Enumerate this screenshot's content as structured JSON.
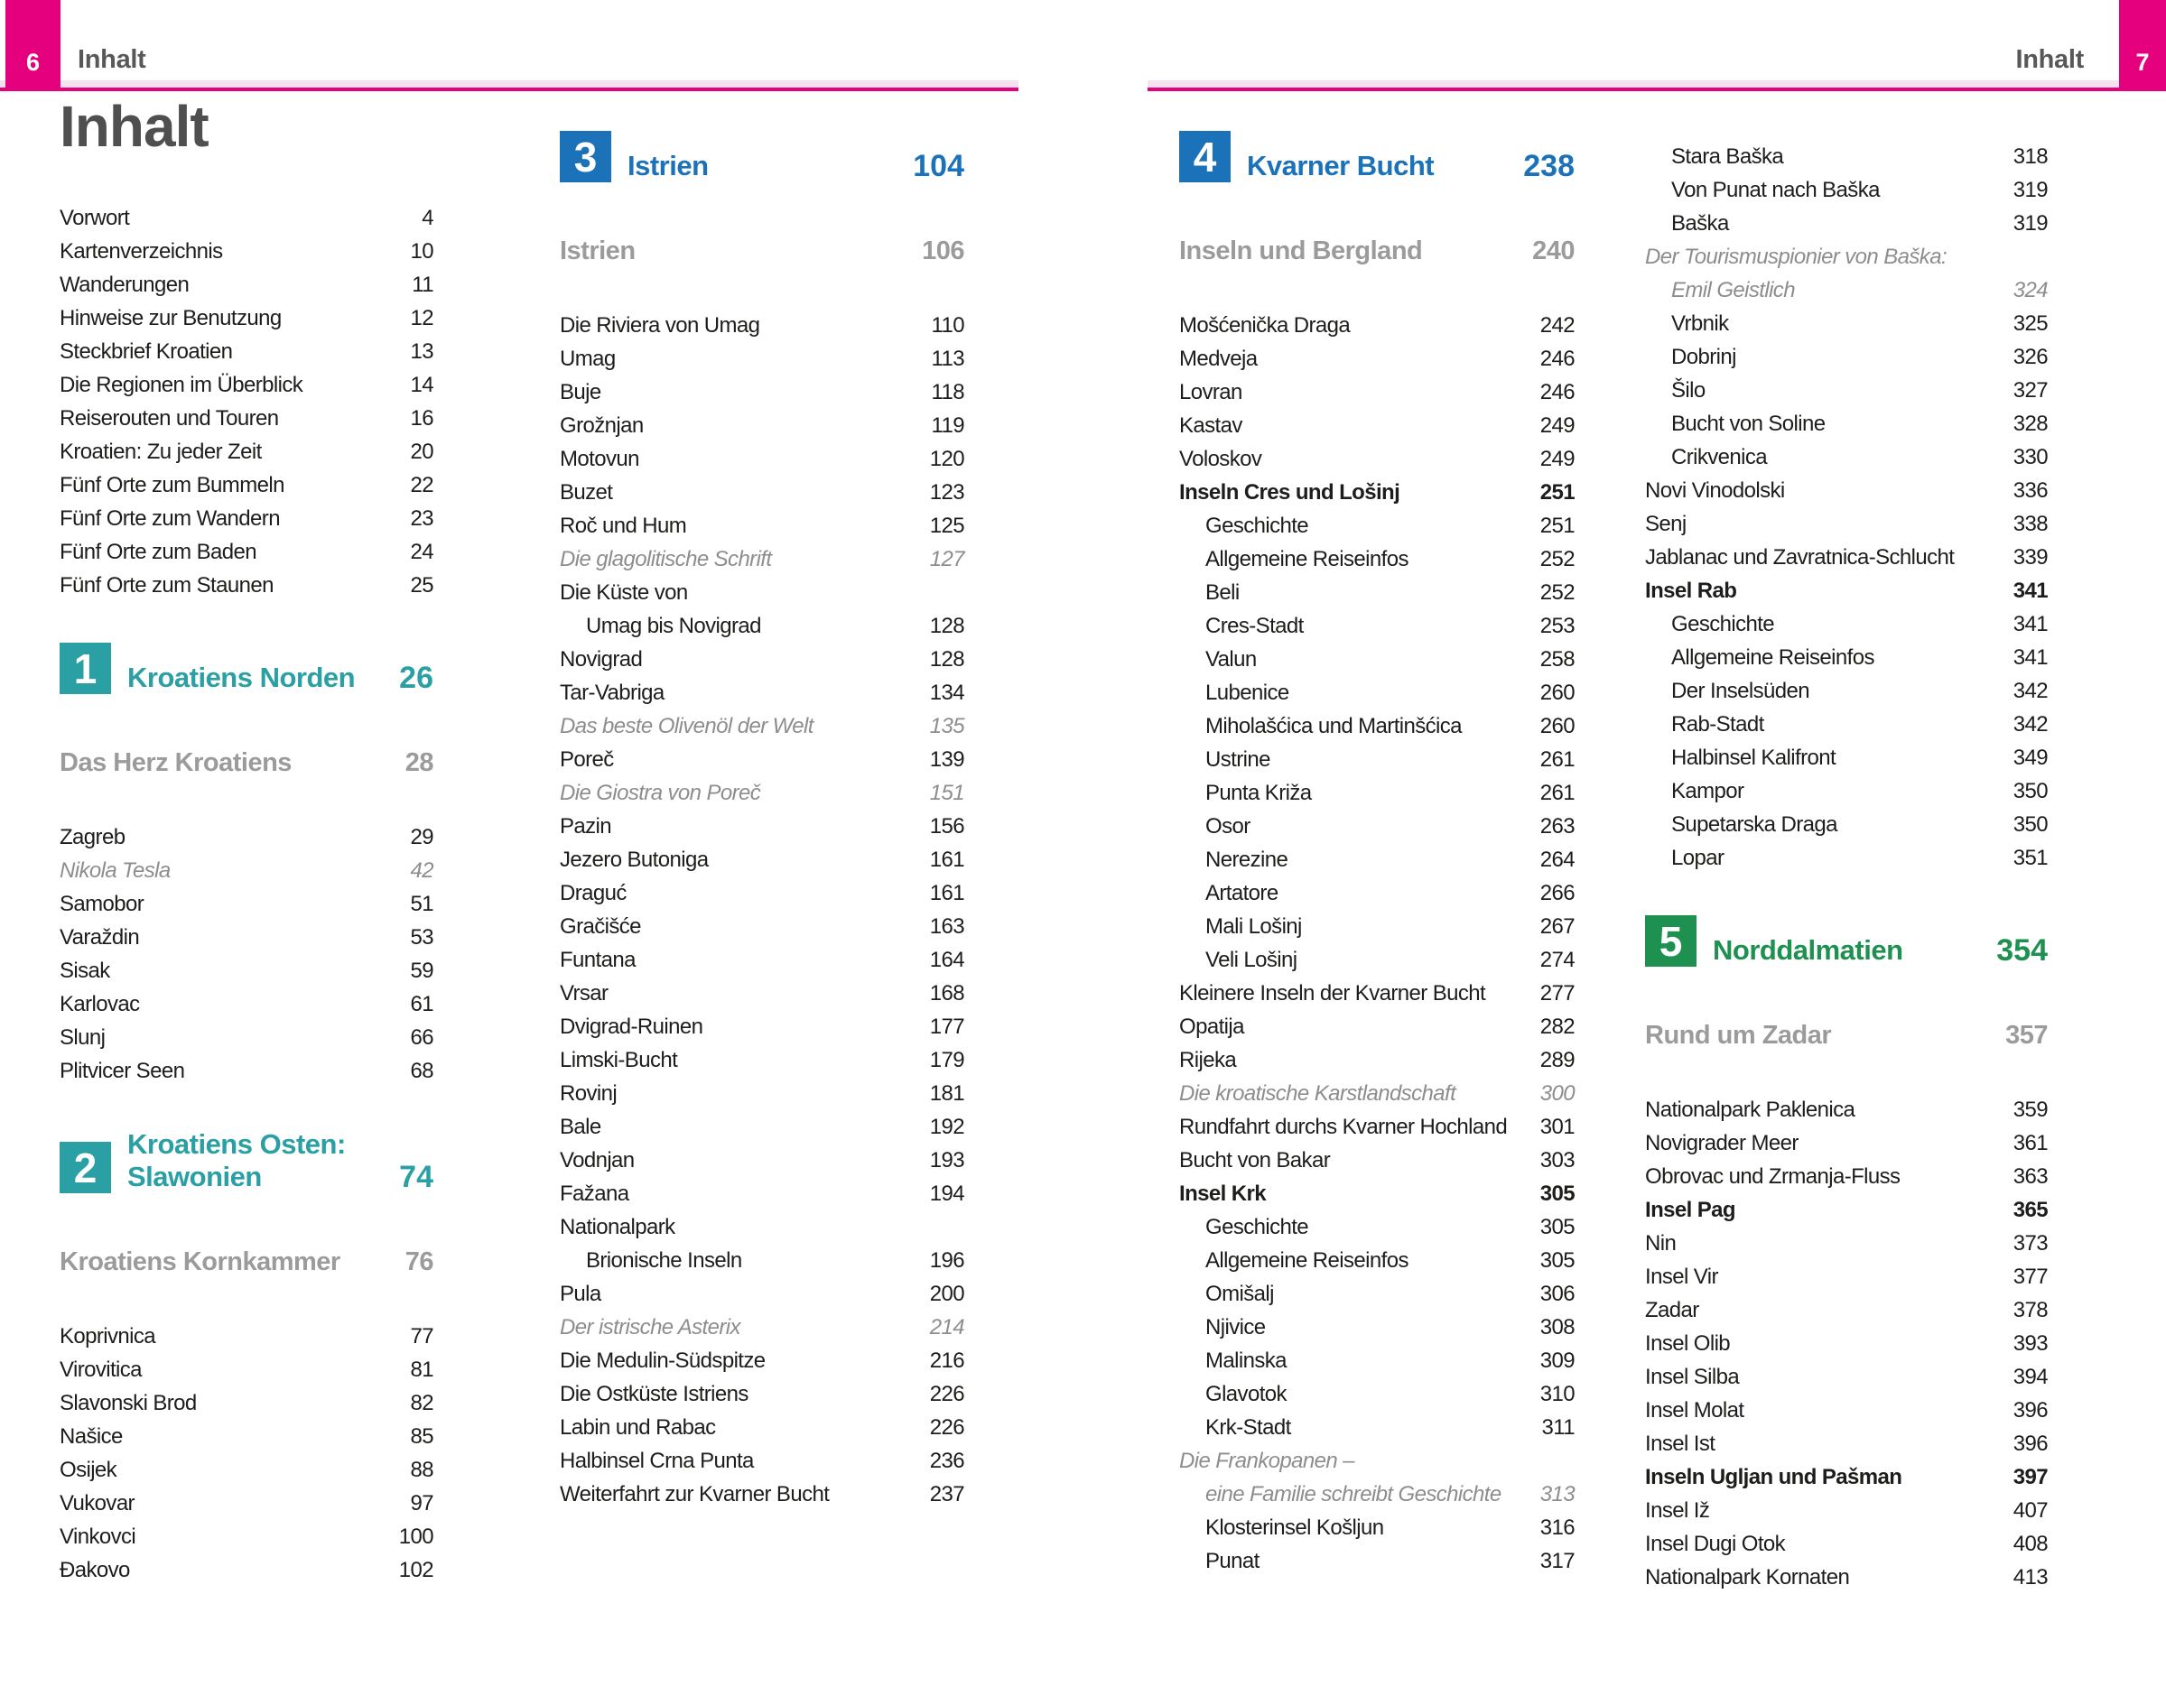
{
  "meta": {
    "left_page_no": "6",
    "right_page_no": "7",
    "header_label": "Inhalt"
  },
  "page_title": "Inhalt",
  "colors": {
    "pink": "#e5017e",
    "bandpink": "#f6e2ee",
    "teal": "#2aa0a4",
    "blue": "#1c72b8",
    "green": "#1e9150",
    "subgray": "#9b9b9b",
    "italicgray": "#8d8d8d",
    "text": "#1d1d1b",
    "titlegray": "#4f4f4f"
  },
  "columns": {
    "col1": [
      {
        "type": "rows",
        "rows": [
          {
            "t": "Vorwort",
            "p": "4"
          },
          {
            "t": "Kartenverzeichnis",
            "p": "10"
          },
          {
            "t": "Wanderungen",
            "p": "11"
          },
          {
            "t": "Hinweise zur Benutzung",
            "p": "12"
          },
          {
            "t": "Steckbrief Kroatien",
            "p": "13"
          },
          {
            "t": "Die Regionen im Überblick",
            "p": "14"
          },
          {
            "t": "Reiserouten und Touren",
            "p": "16"
          },
          {
            "t": "Kroatien: Zu jeder Zeit",
            "p": "20"
          },
          {
            "t": "Fünf Orte zum Bummeln",
            "p": "22"
          },
          {
            "t": "Fünf Orte zum Wandern",
            "p": "23"
          },
          {
            "t": "Fünf Orte zum Baden",
            "p": "24"
          },
          {
            "t": "Fünf Orte zum Staunen",
            "p": "25"
          }
        ]
      },
      {
        "type": "section",
        "num": "1",
        "title": [
          "Kroatiens Norden"
        ],
        "page": "26",
        "color": "teal"
      },
      {
        "type": "subhead",
        "t": "Das Herz Kroatiens",
        "p": "28"
      },
      {
        "type": "rows",
        "rows": [
          {
            "t": "Zagreb",
            "p": "29"
          },
          {
            "t": "Nikola Tesla",
            "p": "42",
            "s": "it"
          },
          {
            "t": "Samobor",
            "p": "51"
          },
          {
            "t": "Varaždin",
            "p": "53"
          },
          {
            "t": "Sisak",
            "p": "59"
          },
          {
            "t": "Karlovac",
            "p": "61"
          },
          {
            "t": "Slunj",
            "p": "66"
          },
          {
            "t": "Plitvicer Seen",
            "p": "68"
          }
        ]
      },
      {
        "type": "section",
        "num": "2",
        "title": [
          "Kroatiens Osten:",
          "Slawonien"
        ],
        "page": "74",
        "color": "teal"
      },
      {
        "type": "subhead",
        "t": "Kroatiens Kornkammer",
        "p": "76"
      },
      {
        "type": "rows",
        "rows": [
          {
            "t": "Koprivnica",
            "p": "77"
          },
          {
            "t": "Virovitica",
            "p": "81"
          },
          {
            "t": "Slavonski Brod",
            "p": "82"
          },
          {
            "t": "Našice",
            "p": "85"
          },
          {
            "t": "Osijek",
            "p": "88"
          },
          {
            "t": "Vukovar",
            "p": "97"
          },
          {
            "t": "Vinkovci",
            "p": "100"
          },
          {
            "t": "Đakovo",
            "p": "102"
          }
        ]
      }
    ],
    "col2": [
      {
        "type": "section",
        "num": "3",
        "title": [
          "Istrien"
        ],
        "page": "104",
        "color": "blue"
      },
      {
        "type": "subhead",
        "t": "Istrien",
        "p": "106"
      },
      {
        "type": "rows",
        "rows": [
          {
            "t": "Die Riviera von Umag",
            "p": "110"
          },
          {
            "t": "Umag",
            "p": "113"
          },
          {
            "t": "Buje",
            "p": "118"
          },
          {
            "t": "Grožnjan",
            "p": "119"
          },
          {
            "t": "Motovun",
            "p": "120"
          },
          {
            "t": "Buzet",
            "p": "123"
          },
          {
            "t": "Roč und Hum",
            "p": "125"
          },
          {
            "t": "Die glagolitische Schrift",
            "p": "127",
            "s": "it"
          },
          {
            "t": "Die Küste von",
            "p": ""
          },
          {
            "t": "Umag bis Novigrad",
            "p": "128",
            "i": 1
          },
          {
            "t": "Novigrad",
            "p": "128"
          },
          {
            "t": "Tar-Vabriga",
            "p": "134"
          },
          {
            "t": "Das beste Olivenöl der Welt",
            "p": "135",
            "s": "it"
          },
          {
            "t": "Poreč",
            "p": "139"
          },
          {
            "t": "Die Giostra von Poreč",
            "p": "151",
            "s": "it"
          },
          {
            "t": "Pazin",
            "p": "156"
          },
          {
            "t": "Jezero Butoniga",
            "p": "161"
          },
          {
            "t": "Draguć",
            "p": "161"
          },
          {
            "t": "Gračišće",
            "p": "163"
          },
          {
            "t": "Funtana",
            "p": "164"
          },
          {
            "t": "Vrsar",
            "p": "168"
          },
          {
            "t": "Dvigrad-Ruinen",
            "p": "177"
          },
          {
            "t": "Limski-Bucht",
            "p": "179"
          },
          {
            "t": "Rovinj",
            "p": "181"
          },
          {
            "t": "Bale",
            "p": "192"
          },
          {
            "t": "Vodnjan",
            "p": "193"
          },
          {
            "t": "Fažana",
            "p": "194"
          },
          {
            "t": "Nationalpark",
            "p": ""
          },
          {
            "t": "Brionische Inseln",
            "p": "196",
            "i": 1
          },
          {
            "t": "Pula",
            "p": "200"
          },
          {
            "t": "Der istrische Asterix",
            "p": "214",
            "s": "it"
          },
          {
            "t": "Die Medulin-Südspitze",
            "p": "216"
          },
          {
            "t": "Die Ostküste Istriens",
            "p": "226"
          },
          {
            "t": "Labin und Rabac",
            "p": "226"
          },
          {
            "t": "Halbinsel Crna Punta",
            "p": "236"
          },
          {
            "t": "Weiterfahrt zur Kvarner Bucht",
            "p": "237"
          }
        ]
      }
    ],
    "col3": [
      {
        "type": "section",
        "num": "4",
        "title": [
          "Kvarner Bucht"
        ],
        "page": "238",
        "color": "blue"
      },
      {
        "type": "subhead",
        "t": "Inseln und Bergland",
        "p": "240"
      },
      {
        "type": "rows",
        "rows": [
          {
            "t": "Mošćenička Draga",
            "p": "242"
          },
          {
            "t": "Medveja",
            "p": "246"
          },
          {
            "t": "Lovran",
            "p": "246"
          },
          {
            "t": "Kastav",
            "p": "249"
          },
          {
            "t": "Voloskov",
            "p": "249"
          },
          {
            "t": "Inseln Cres und Lošinj",
            "p": "251",
            "s": "b"
          },
          {
            "t": "Geschichte",
            "p": "251",
            "i": 1
          },
          {
            "t": "Allgemeine Reiseinfos",
            "p": "252",
            "i": 1
          },
          {
            "t": "Beli",
            "p": "252",
            "i": 1
          },
          {
            "t": "Cres-Stadt",
            "p": "253",
            "i": 1
          },
          {
            "t": "Valun",
            "p": "258",
            "i": 1
          },
          {
            "t": "Lubenice",
            "p": "260",
            "i": 1
          },
          {
            "t": "Miholašćica und Martinšćica",
            "p": "260",
            "i": 1
          },
          {
            "t": "Ustrine",
            "p": "261",
            "i": 1
          },
          {
            "t": "Punta Križa",
            "p": "261",
            "i": 1
          },
          {
            "t": "Osor",
            "p": "263",
            "i": 1
          },
          {
            "t": "Nerezine",
            "p": "264",
            "i": 1
          },
          {
            "t": "Artatore",
            "p": "266",
            "i": 1
          },
          {
            "t": "Mali Lošinj",
            "p": "267",
            "i": 1
          },
          {
            "t": "Veli Lošinj",
            "p": "274",
            "i": 1
          },
          {
            "t": "Kleinere Inseln der Kvarner Bucht",
            "p": "277"
          },
          {
            "t": "Opatija",
            "p": "282"
          },
          {
            "t": "Rijeka",
            "p": "289"
          },
          {
            "t": "Die kroatische Karstlandschaft",
            "p": "300",
            "s": "it"
          },
          {
            "t": "Rundfahrt durchs Kvarner Hochland",
            "p": "301"
          },
          {
            "t": "Bucht von Bakar",
            "p": "303"
          },
          {
            "t": "Insel Krk",
            "p": "305",
            "s": "b"
          },
          {
            "t": "Geschichte",
            "p": "305",
            "i": 1
          },
          {
            "t": "Allgemeine Reiseinfos",
            "p": "305",
            "i": 1
          },
          {
            "t": "Omišalj",
            "p": "306",
            "i": 1
          },
          {
            "t": "Njivice",
            "p": "308",
            "i": 1
          },
          {
            "t": "Malinska",
            "p": "309",
            "i": 1
          },
          {
            "t": "Glavotok",
            "p": "310",
            "i": 1
          },
          {
            "t": "Krk-Stadt",
            "p": "311",
            "i": 1
          },
          {
            "t": "Die Frankopanen –",
            "p": "",
            "s": "it"
          },
          {
            "t": "eine Familie schreibt Geschichte",
            "p": "313",
            "s": "it",
            "i": 1
          },
          {
            "t": "Klosterinsel Košljun",
            "p": "316",
            "i": 1
          },
          {
            "t": "Punat",
            "p": "317",
            "i": 1
          }
        ]
      }
    ],
    "col4": [
      {
        "type": "rows",
        "rows": [
          {
            "t": "Stara Baška",
            "p": "318",
            "i": 1
          },
          {
            "t": "Von Punat nach Baška",
            "p": "319",
            "i": 1
          },
          {
            "t": "Baška",
            "p": "319",
            "i": 1
          },
          {
            "t": "Der Tourismuspionier von Baška:",
            "p": "",
            "s": "it"
          },
          {
            "t": "Emil Geistlich",
            "p": "324",
            "s": "it",
            "i": 1
          },
          {
            "t": "Vrbnik",
            "p": "325",
            "i": 1
          },
          {
            "t": "Dobrinj",
            "p": "326",
            "i": 1
          },
          {
            "t": "Šilo",
            "p": "327",
            "i": 1
          },
          {
            "t": "Bucht von Soline",
            "p": "328",
            "i": 1
          },
          {
            "t": "Crikvenica",
            "p": "330",
            "i": 1
          },
          {
            "t": "Novi Vinodolski",
            "p": "336"
          },
          {
            "t": "Senj",
            "p": "338"
          },
          {
            "t": "Jablanac und Zavratnica-Schlucht",
            "p": "339"
          },
          {
            "t": "Insel Rab",
            "p": "341",
            "s": "b"
          },
          {
            "t": "Geschichte",
            "p": "341",
            "i": 1
          },
          {
            "t": "Allgemeine Reiseinfos",
            "p": "341",
            "i": 1
          },
          {
            "t": "Der Inselsüden",
            "p": "342",
            "i": 1
          },
          {
            "t": "Rab-Stadt",
            "p": "342",
            "i": 1
          },
          {
            "t": "Halbinsel Kalifront",
            "p": "349",
            "i": 1
          },
          {
            "t": "Kampor",
            "p": "350",
            "i": 1
          },
          {
            "t": "Supetarska Draga",
            "p": "350",
            "i": 1
          },
          {
            "t": "Lopar",
            "p": "351",
            "i": 1
          }
        ]
      },
      {
        "type": "section",
        "num": "5",
        "title": [
          "Norddalmatien"
        ],
        "page": "354",
        "color": "green"
      },
      {
        "type": "subhead",
        "t": "Rund um Zadar",
        "p": "357"
      },
      {
        "type": "rows",
        "rows": [
          {
            "t": "Nationalpark Paklenica",
            "p": "359"
          },
          {
            "t": "Novigrader Meer",
            "p": "361"
          },
          {
            "t": "Obrovac und Zrmanja-Fluss",
            "p": "363"
          },
          {
            "t": "Insel Pag",
            "p": "365",
            "s": "b"
          },
          {
            "t": "Nin",
            "p": "373"
          },
          {
            "t": "Insel Vir",
            "p": "377"
          },
          {
            "t": "Zadar",
            "p": "378"
          },
          {
            "t": "Insel Olib",
            "p": "393"
          },
          {
            "t": "Insel Silba",
            "p": "394"
          },
          {
            "t": "Insel Molat",
            "p": "396"
          },
          {
            "t": "Insel Ist",
            "p": "396"
          },
          {
            "t": "Inseln Ugljan und Pašman",
            "p": "397",
            "s": "b"
          },
          {
            "t": "Insel Iž",
            "p": "407"
          },
          {
            "t": "Insel Dugi Otok",
            "p": "408"
          },
          {
            "t": "Nationalpark Kornaten",
            "p": "413"
          }
        ]
      }
    ]
  }
}
